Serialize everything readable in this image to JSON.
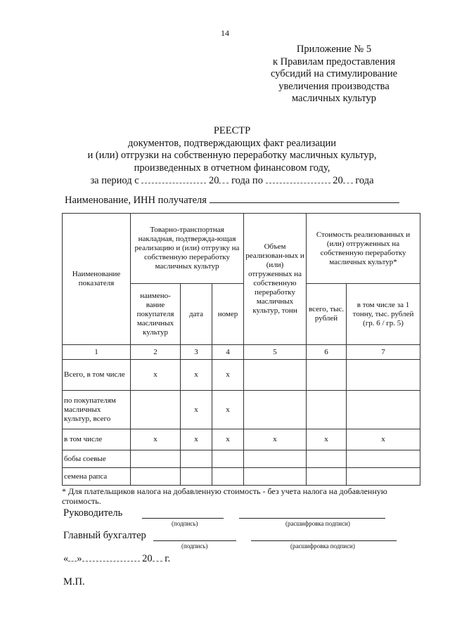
{
  "page_number": "14",
  "annex": [
    "Приложение № 5",
    "к Правилам предоставления",
    "субсидий на стимулирование",
    "увеличения производства",
    "масличных культур"
  ],
  "title": {
    "heading": "РЕЕСТР",
    "lines": [
      "документов, подтверждающих факт реализации",
      "и (или) отгрузки на собственную переработку масличных культур,",
      "произведенных в отчетном финансовом году,"
    ],
    "period_prefix": "за период с",
    "year_prefix": "20",
    "year_suffix": "года по",
    "year_prefix2": "20",
    "year_suffix2": "года"
  },
  "recipient_label": "Наименование, ИНН получателя",
  "table": {
    "col1": "Наименование показателя",
    "group1": "Товарно-транспортная накладная, подтвержда-ющая реализацию и (или) отгрузку на собственную переработку масличных культур",
    "sub_buyer": "наимено-вание покупателя масличных культур",
    "sub_date": "дата",
    "sub_number": "номер",
    "col5": "Объем реализован-ных и (или) отгруженных на собственную переработку масличных культур, тонн",
    "group2": "Стоимость реализованных и (или) отгруженных на собственную переработку масличных культур*",
    "sub_total": "всего, тыс. рублей",
    "sub_per_ton": "в том числе за 1 тонну, тыс. рублей (гр. 6 / гр. 5)",
    "numbers": [
      "1",
      "2",
      "3",
      "4",
      "5",
      "6",
      "7"
    ],
    "rows": [
      {
        "label": "Всего, в том числе",
        "cells": [
          "x",
          "x",
          "x",
          "",
          "",
          ""
        ]
      },
      {
        "label": "по покупателям масличных культур, всего",
        "cells": [
          "",
          "x",
          "x",
          "",
          "",
          ""
        ]
      },
      {
        "label": "в том числе",
        "cells": [
          "x",
          "x",
          "x",
          "x",
          "x",
          "x"
        ]
      },
      {
        "label": "бобы соевые",
        "cells": [
          "",
          "",
          "",
          "",
          "",
          ""
        ]
      },
      {
        "label": "семена рапса",
        "cells": [
          "",
          "",
          "",
          "",
          "",
          ""
        ]
      }
    ]
  },
  "footnote": "* Для плательщиков налога на добавленную стоимость - без учета налога на добавленную стоимость.",
  "signatures": {
    "head": "Руководитель",
    "accountant": "Главный бухгалтер",
    "signature_caption": "(подпись)",
    "decode_caption": "(расшифровка подписи)",
    "date_open": "«",
    "date_close": "»",
    "date_year": "20",
    "date_suffix": "г.",
    "stamp": "М.П."
  }
}
